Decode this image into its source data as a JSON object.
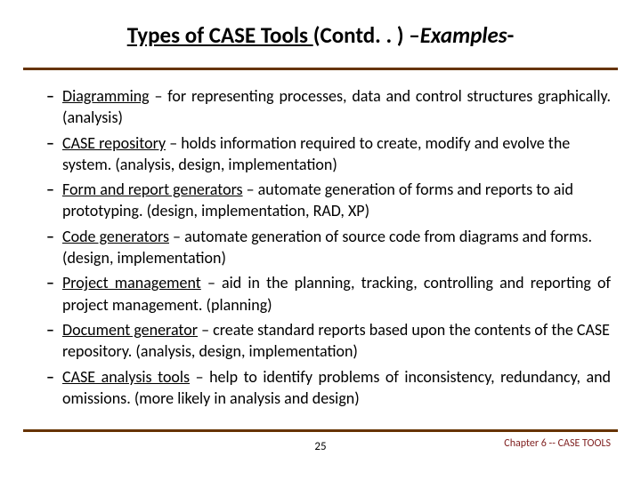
{
  "title": {
    "part1": "Types of CASE Tools ",
    "part2": "(Contd. . ) –",
    "part3": "Examples",
    "part4": "-"
  },
  "items": [
    {
      "term": "Diagramming",
      "rest": " – for representing processes, data and control structures graphically. (analysis)",
      "justify": true
    },
    {
      "term": "CASE repository",
      "rest": " – holds information required to create, modify and evolve the system. (analysis, design, implementation)",
      "justify": false
    },
    {
      "term": "Form and report generators",
      "rest": " – automate generation of forms and reports to aid prototyping. (design, implementation, RAD, XP)",
      "justify": false
    },
    {
      "term": "Code generators",
      "rest": " – automate generation of source code from diagrams and forms. (design, implementation)",
      "justify": false
    },
    {
      "term": "Project management",
      "rest": " – aid in the planning, tracking, controlling and reporting of project management. (planning)",
      "justify": true
    },
    {
      "term": "Document generator",
      "rest": " – create standard reports based upon the contents of the CASE repository. (analysis, design, implementation)",
      "justify": false
    },
    {
      "term": "CASE analysis tools",
      "rest": " – help to identify problems of inconsistency, redundancy, and omissions. (more likely in analysis and design)",
      "justify": true
    }
  ],
  "footer": {
    "page": "25",
    "chapter": "Chapter 6 -- CASE TOOLS"
  },
  "colors": {
    "rule": "#663300",
    "chapter": "#7f1f1f",
    "text": "#000000",
    "bg": "#ffffff"
  }
}
